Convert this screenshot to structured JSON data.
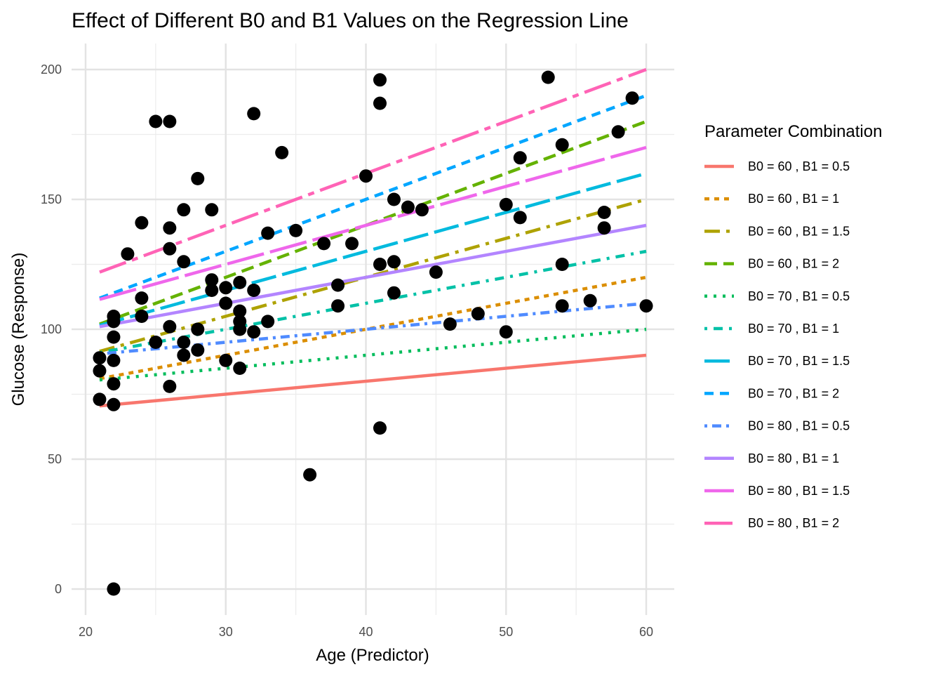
{
  "chart_data": {
    "type": "scatter",
    "title": "Effect of Different B0 and B1 Values on the Regression Line",
    "xlabel": "Age (Predictor)",
    "ylabel": "Glucose (Response)",
    "xlim": [
      19,
      62
    ],
    "ylim": [
      -10,
      210
    ],
    "x_ticks": [
      20,
      30,
      40,
      50,
      60
    ],
    "y_ticks": [
      0,
      50,
      100,
      150,
      200
    ],
    "grid": true,
    "legend": {
      "title": "Parameter Combination",
      "position": "right"
    },
    "points": [
      {
        "x": 21,
        "y": 89
      },
      {
        "x": 21,
        "y": 84
      },
      {
        "x": 21,
        "y": 73
      },
      {
        "x": 22,
        "y": 105
      },
      {
        "x": 22,
        "y": 103
      },
      {
        "x": 22,
        "y": 97
      },
      {
        "x": 22,
        "y": 88
      },
      {
        "x": 22,
        "y": 79
      },
      {
        "x": 22,
        "y": 71
      },
      {
        "x": 22,
        "y": 0
      },
      {
        "x": 23,
        "y": 129
      },
      {
        "x": 24,
        "y": 141
      },
      {
        "x": 24,
        "y": 112
      },
      {
        "x": 24,
        "y": 105
      },
      {
        "x": 25,
        "y": 180
      },
      {
        "x": 25,
        "y": 95
      },
      {
        "x": 26,
        "y": 180
      },
      {
        "x": 26,
        "y": 139
      },
      {
        "x": 26,
        "y": 131
      },
      {
        "x": 26,
        "y": 101
      },
      {
        "x": 26,
        "y": 78
      },
      {
        "x": 27,
        "y": 146
      },
      {
        "x": 27,
        "y": 126
      },
      {
        "x": 27,
        "y": 95
      },
      {
        "x": 27,
        "y": 90
      },
      {
        "x": 28,
        "y": 158
      },
      {
        "x": 28,
        "y": 100
      },
      {
        "x": 28,
        "y": 92
      },
      {
        "x": 29,
        "y": 146
      },
      {
        "x": 29,
        "y": 119
      },
      {
        "x": 29,
        "y": 115
      },
      {
        "x": 30,
        "y": 116
      },
      {
        "x": 30,
        "y": 110
      },
      {
        "x": 30,
        "y": 88
      },
      {
        "x": 31,
        "y": 118
      },
      {
        "x": 31,
        "y": 107
      },
      {
        "x": 31,
        "y": 103
      },
      {
        "x": 31,
        "y": 100
      },
      {
        "x": 31,
        "y": 85
      },
      {
        "x": 32,
        "y": 183
      },
      {
        "x": 32,
        "y": 115
      },
      {
        "x": 32,
        "y": 99
      },
      {
        "x": 33,
        "y": 137
      },
      {
        "x": 33,
        "y": 103
      },
      {
        "x": 34,
        "y": 168
      },
      {
        "x": 35,
        "y": 138
      },
      {
        "x": 36,
        "y": 44
      },
      {
        "x": 37,
        "y": 133
      },
      {
        "x": 38,
        "y": 117
      },
      {
        "x": 38,
        "y": 109
      },
      {
        "x": 39,
        "y": 133
      },
      {
        "x": 40,
        "y": 159
      },
      {
        "x": 41,
        "y": 196
      },
      {
        "x": 41,
        "y": 187
      },
      {
        "x": 41,
        "y": 125
      },
      {
        "x": 41,
        "y": 62
      },
      {
        "x": 42,
        "y": 150
      },
      {
        "x": 42,
        "y": 126
      },
      {
        "x": 42,
        "y": 114
      },
      {
        "x": 43,
        "y": 147
      },
      {
        "x": 44,
        "y": 146
      },
      {
        "x": 45,
        "y": 122
      },
      {
        "x": 46,
        "y": 102
      },
      {
        "x": 48,
        "y": 106
      },
      {
        "x": 50,
        "y": 148
      },
      {
        "x": 50,
        "y": 99
      },
      {
        "x": 51,
        "y": 166
      },
      {
        "x": 51,
        "y": 143
      },
      {
        "x": 53,
        "y": 197
      },
      {
        "x": 54,
        "y": 171
      },
      {
        "x": 54,
        "y": 125
      },
      {
        "x": 54,
        "y": 109
      },
      {
        "x": 56,
        "y": 111
      },
      {
        "x": 57,
        "y": 145
      },
      {
        "x": 57,
        "y": 139
      },
      {
        "x": 58,
        "y": 176
      },
      {
        "x": 59,
        "y": 189
      },
      {
        "x": 60,
        "y": 109
      }
    ],
    "series": [
      {
        "name": "B0 = 60 , B1 = 0.5",
        "b0": 60,
        "b1": 0.5,
        "x": [
          21,
          60
        ],
        "y": [
          70.5,
          90
        ],
        "color": "#F8766D",
        "dash": ""
      },
      {
        "name": "B0 = 60 , B1 = 1",
        "b0": 60,
        "b1": 1,
        "x": [
          21,
          60
        ],
        "y": [
          81,
          120
        ],
        "color": "#DB8E00",
        "dash": "7 7"
      },
      {
        "name": "B0 = 60 , B1 = 1.5",
        "b0": 60,
        "b1": 1.5,
        "x": [
          21,
          60
        ],
        "y": [
          91.5,
          150
        ],
        "color": "#AEA200",
        "dash": "22 9 5 9"
      },
      {
        "name": "B0 = 60 , B1 = 2",
        "b0": 60,
        "b1": 2,
        "x": [
          21,
          60
        ],
        "y": [
          102,
          180
        ],
        "color": "#64B200",
        "dash": "18 9"
      },
      {
        "name": "B0 = 70 , B1 = 0.5",
        "b0": 70,
        "b1": 0.5,
        "x": [
          21,
          60
        ],
        "y": [
          80.5,
          100
        ],
        "color": "#00BD5C",
        "dash": "4 9"
      },
      {
        "name": "B0 = 70 , B1 = 1",
        "b0": 70,
        "b1": 1,
        "x": [
          21,
          60
        ],
        "y": [
          91,
          130
        ],
        "color": "#00C1A7",
        "dash": "4 9 13 9"
      },
      {
        "name": "B0 = 70 , B1 = 1.5",
        "b0": 70,
        "b1": 1.5,
        "x": [
          21,
          60
        ],
        "y": [
          101.5,
          160
        ],
        "color": "#00BADE",
        "dash": "36 9"
      },
      {
        "name": "B0 = 70 , B1 = 2",
        "b0": 70,
        "b1": 2,
        "x": [
          21,
          60
        ],
        "y": [
          112,
          190
        ],
        "color": "#00A6FF",
        "dash": "13 9"
      },
      {
        "name": "B0 = 80 , B1 = 0.5",
        "b0": 80,
        "b1": 0.5,
        "x": [
          21,
          60
        ],
        "y": [
          90.5,
          110
        ],
        "color": "#4F8BFF",
        "dash": "4 7 13 7"
      },
      {
        "name": "B0 = 80 , B1 = 1",
        "b0": 80,
        "b1": 1,
        "x": [
          21,
          60
        ],
        "y": [
          101,
          140
        ],
        "color": "#B385FF",
        "dash": ""
      },
      {
        "name": "B0 = 80 , B1 = 1.5",
        "b0": 80,
        "b1": 1.5,
        "x": [
          21,
          60
        ],
        "y": [
          111.5,
          170
        ],
        "color": "#EF67EB",
        "dash": "54 9"
      },
      {
        "name": "B0 = 80 , B1 = 2",
        "b0": 80,
        "b1": 2,
        "x": [
          21,
          60
        ],
        "y": [
          122,
          200
        ],
        "color": "#FF63B6",
        "dash": "40 9 9 9"
      }
    ]
  }
}
